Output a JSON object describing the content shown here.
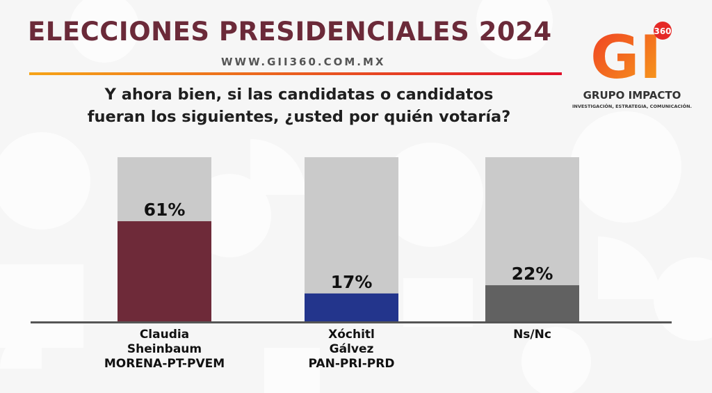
{
  "header": {
    "title": "ELECCIONES PRESIDENCIALES 2024",
    "url": "WWW.GII360.COM.MX"
  },
  "brand": {
    "logo_letters": "GI",
    "logo_badge": "360",
    "name": "GRUPO IMPACTO",
    "tagline": "INVESTIGACIÓN, ESTRATEGIA, COMUNICACIÓN."
  },
  "question": {
    "line1": "Y ahora bien, si las candidatas o candidatos",
    "line2": "fueran los siguientes, ¿usted por quién votaría?"
  },
  "chart_data": {
    "type": "bar",
    "categories": [
      [
        "Claudia",
        "Sheinbaum",
        "MORENA-PT-PVEM"
      ],
      [
        "Xóchitl",
        "Gálvez",
        "PAN-PRI-PRD"
      ],
      [
        "Ns/Nc"
      ]
    ],
    "values": [
      61,
      17,
      22
    ],
    "value_labels": [
      "61%",
      "17%",
      "22%"
    ],
    "ylim": [
      0,
      100
    ],
    "colors": [
      "#6e2a39",
      "#23358c",
      "#616161"
    ],
    "track_color": "#cacaca",
    "axis_color": "#555555",
    "grid": false
  }
}
